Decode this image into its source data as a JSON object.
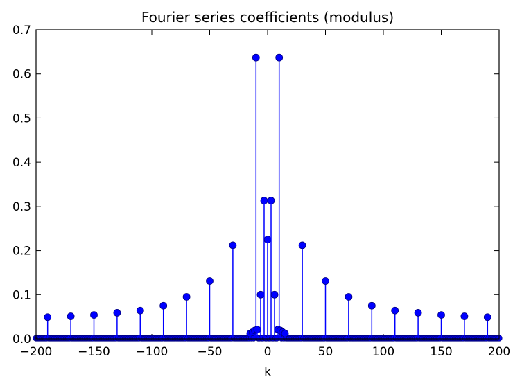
{
  "chart_data": {
    "type": "stem",
    "title": "Fourier series coefficients (modulus)",
    "xlabel": "k",
    "ylabel": "",
    "xlim": [
      -200,
      200
    ],
    "ylim": [
      0,
      0.7
    ],
    "xticks": [
      -200,
      -150,
      -100,
      -50,
      0,
      50,
      100,
      150,
      200
    ],
    "xtick_labels": [
      "−200",
      "−150",
      "−100",
      "−50",
      "0",
      "50",
      "100",
      "150",
      "200"
    ],
    "yticks": [
      0.0,
      0.1,
      0.2,
      0.3,
      0.4,
      0.5,
      0.6,
      0.7
    ],
    "ytick_labels": [
      "0.0",
      "0.1",
      "0.2",
      "0.3",
      "0.4",
      "0.5",
      "0.6",
      "0.7"
    ],
    "grid": false,
    "color": "#0000ff",
    "marker_edge_color": "#000080",
    "points": [
      {
        "x": -190,
        "y": 0.049
      },
      {
        "x": -170,
        "y": 0.051
      },
      {
        "x": -150,
        "y": 0.054
      },
      {
        "x": -130,
        "y": 0.059
      },
      {
        "x": -110,
        "y": 0.064
      },
      {
        "x": -90,
        "y": 0.075
      },
      {
        "x": -70,
        "y": 0.095
      },
      {
        "x": -50,
        "y": 0.131
      },
      {
        "x": -30,
        "y": 0.212
      },
      {
        "x": -15,
        "y": 0.012
      },
      {
        "x": -13,
        "y": 0.015
      },
      {
        "x": -11,
        "y": 0.019
      },
      {
        "x": -10,
        "y": 0.637
      },
      {
        "x": -9,
        "y": 0.021
      },
      {
        "x": -6,
        "y": 0.1
      },
      {
        "x": -3,
        "y": 0.313
      },
      {
        "x": 0,
        "y": 0.225
      },
      {
        "x": 3,
        "y": 0.313
      },
      {
        "x": 6,
        "y": 0.1
      },
      {
        "x": 9,
        "y": 0.021
      },
      {
        "x": 10,
        "y": 0.637
      },
      {
        "x": 11,
        "y": 0.019
      },
      {
        "x": 13,
        "y": 0.015
      },
      {
        "x": 15,
        "y": 0.012
      },
      {
        "x": 30,
        "y": 0.212
      },
      {
        "x": 50,
        "y": 0.131
      },
      {
        "x": 70,
        "y": 0.095
      },
      {
        "x": 90,
        "y": 0.075
      },
      {
        "x": 110,
        "y": 0.064
      },
      {
        "x": 130,
        "y": 0.059
      },
      {
        "x": 150,
        "y": 0.054
      },
      {
        "x": 170,
        "y": 0.051
      },
      {
        "x": 190,
        "y": 0.049
      }
    ]
  }
}
